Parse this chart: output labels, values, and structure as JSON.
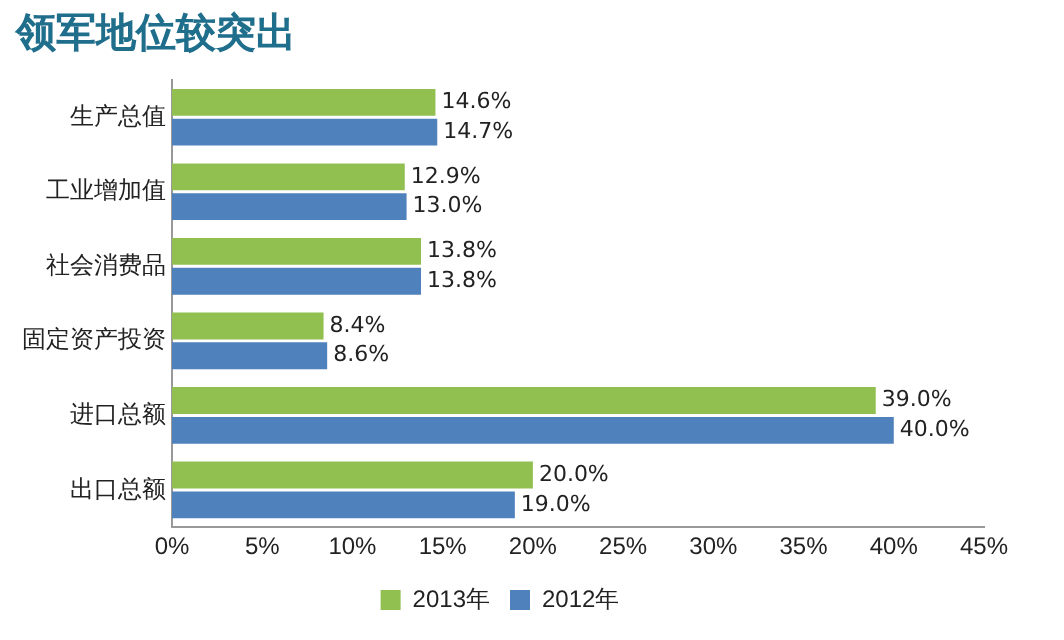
{
  "chart_data": {
    "type": "bar",
    "orientation": "horizontal",
    "title": "领军地位较突出",
    "categories": [
      "生产总值",
      "工业增加值",
      "社会消费品",
      "固定资产投资",
      "进口总额",
      "出口总额"
    ],
    "series": [
      {
        "name": "2013年",
        "color": "#92c050",
        "values": [
          14.6,
          12.9,
          13.8,
          8.4,
          39.0,
          20.0
        ],
        "value_labels": [
          "14.6%",
          "12.9%",
          "13.8%",
          "8.4%",
          "39.0%",
          "20.0%"
        ]
      },
      {
        "name": "2012年",
        "color": "#4f81bd",
        "values": [
          14.7,
          13.0,
          13.8,
          8.6,
          40.0,
          19.0
        ],
        "value_labels": [
          "14.7%",
          "13.0%",
          "13.8%",
          "8.6%",
          "40.0%",
          "19.0%"
        ]
      }
    ],
    "xlim": [
      0,
      45
    ],
    "xticks": [
      {
        "value": 0,
        "label": "0%"
      },
      {
        "value": 5,
        "label": "5%"
      },
      {
        "value": 10,
        "label": "10%"
      },
      {
        "value": 15,
        "label": "15%"
      },
      {
        "value": 20,
        "label": "20%"
      },
      {
        "value": 25,
        "label": "25%"
      },
      {
        "value": 30,
        "label": "30%"
      },
      {
        "value": 35,
        "label": "35%"
      },
      {
        "value": 40,
        "label": "40%"
      },
      {
        "value": 45,
        "label": "45%"
      }
    ],
    "grid": false,
    "legend": "bottom"
  }
}
